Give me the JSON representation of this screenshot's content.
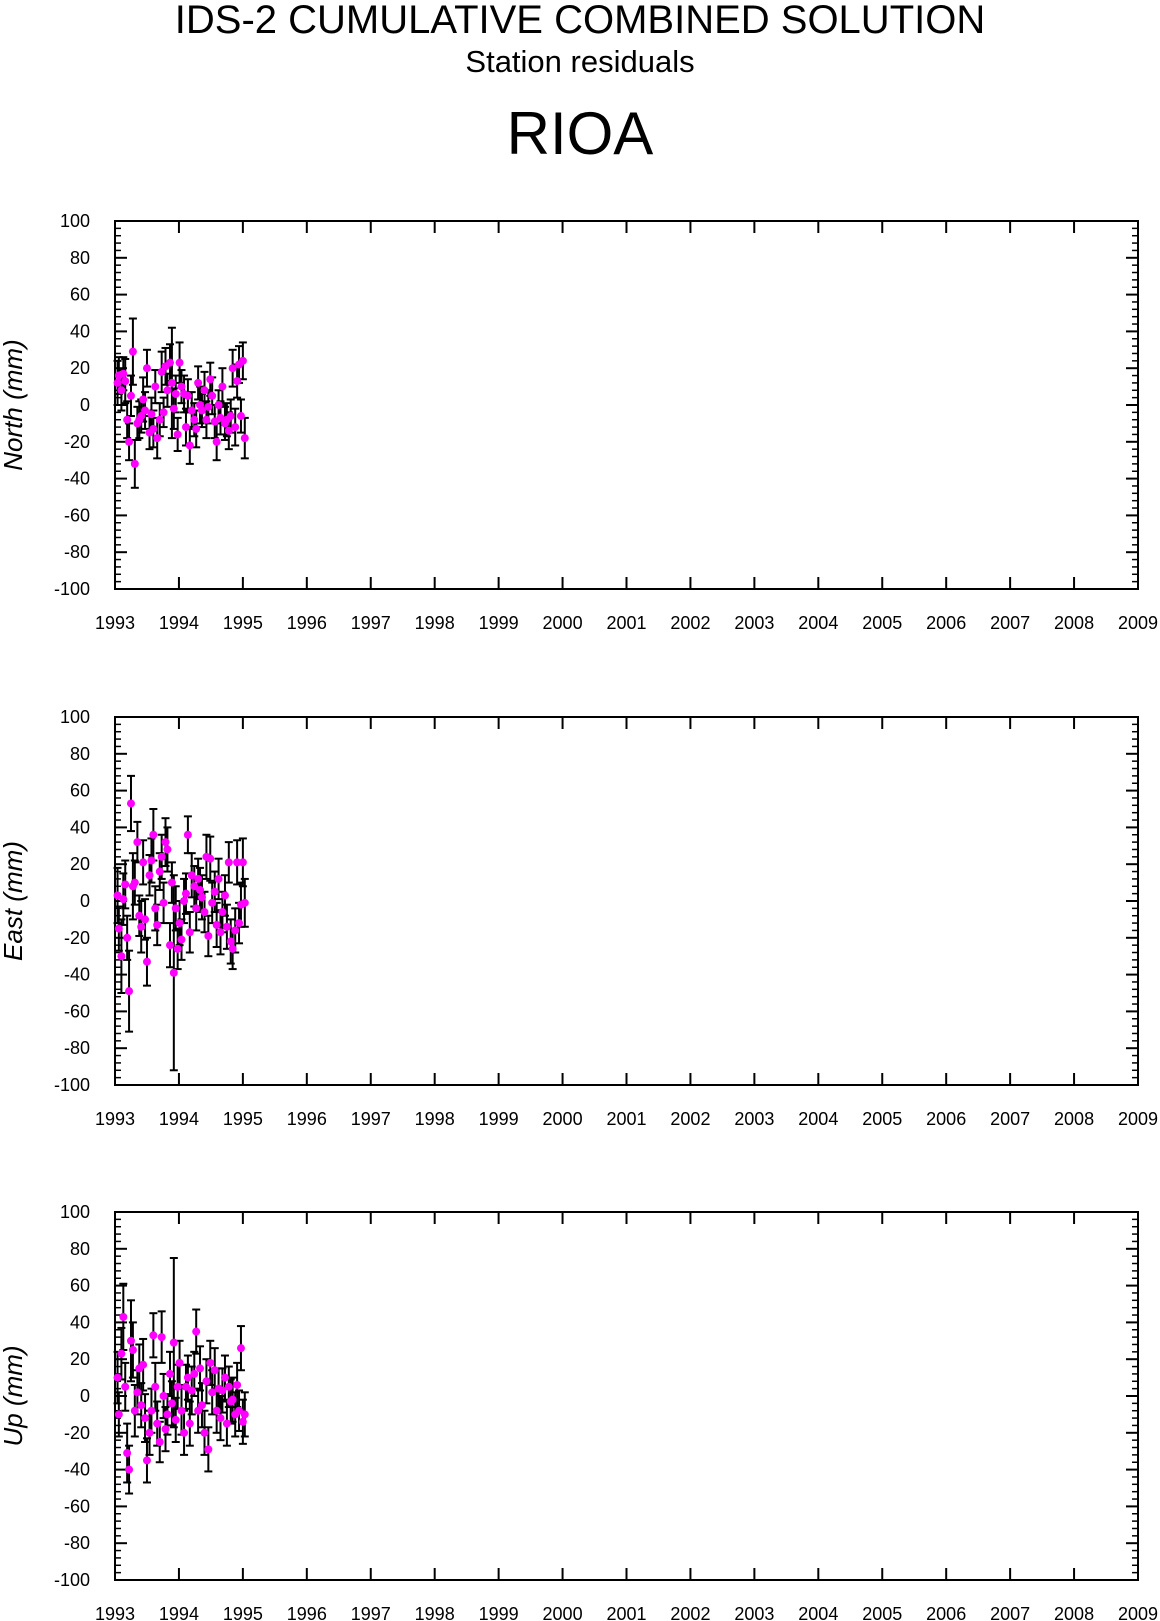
{
  "header": {
    "title": "IDS-2 CUMULATIVE COMBINED SOLUTION",
    "subtitle": "Station residuals",
    "station": "RIOA"
  },
  "colors": {
    "marker": "#ff00ff",
    "errorbar": "#000000",
    "axis": "#000000",
    "background": "#ffffff"
  },
  "chart_data": [
    {
      "type": "scatter",
      "panel": "north",
      "ylabel": "North (mm)",
      "xlim": [
        1993,
        2009
      ],
      "ylim": [
        -100,
        100
      ],
      "xticks": [
        "1993",
        "1994",
        "1995",
        "1996",
        "1997",
        "1998",
        "1999",
        "2000",
        "2001",
        "2002",
        "2003",
        "2004",
        "2005",
        "2006",
        "2007",
        "2008",
        "2009"
      ],
      "yticks": [
        "100",
        "80",
        "60",
        "40",
        "20",
        "0",
        "-20",
        "-40",
        "-60",
        "-80",
        "-100"
      ],
      "grid": false,
      "series": [
        {
          "x": [
            1993.04,
            1993.06,
            1993.1,
            1993.13,
            1993.16,
            1993.19,
            1993.22,
            1993.25,
            1993.28,
            1993.31,
            1993.35,
            1993.38,
            1993.41,
            1993.44,
            1993.47,
            1993.5,
            1993.54,
            1993.57,
            1993.6,
            1993.63,
            1993.66,
            1993.7,
            1993.73,
            1993.76,
            1993.79,
            1993.82,
            1993.86,
            1993.89,
            1993.92,
            1993.95,
            1993.98,
            1994.01,
            1994.04,
            1994.08,
            1994.11,
            1994.14,
            1994.17,
            1994.2,
            1994.24,
            1994.27,
            1994.3,
            1994.33,
            1994.36,
            1994.4,
            1994.43,
            1994.46,
            1994.49,
            1994.52,
            1994.56,
            1994.59,
            1994.62,
            1994.65,
            1994.68,
            1994.72,
            1994.75,
            1994.78,
            1994.81,
            1994.84,
            1994.88,
            1994.91,
            1994.94,
            1994.97,
            1995.0,
            1995.03
          ],
          "y": [
            12,
            16,
            8,
            17,
            13,
            -8,
            -20,
            5,
            29,
            -32,
            -10,
            -8,
            -6,
            3,
            -3,
            20,
            -15,
            -5,
            -13,
            10,
            -18,
            -8,
            18,
            -4,
            21,
            8,
            23,
            12,
            -2,
            6,
            -16,
            23,
            10,
            6,
            -12,
            5,
            -22,
            -3,
            -8,
            -13,
            12,
            0,
            -3,
            8,
            -8,
            -1,
            14,
            5,
            -9,
            -20,
            0,
            -7,
            10,
            -10,
            -8,
            -14,
            -6,
            20,
            -12,
            13,
            22,
            -6,
            24,
            -18
          ],
          "err": [
            12,
            10,
            11,
            9,
            12,
            10,
            10,
            11,
            18,
            13,
            9,
            10,
            9,
            12,
            10,
            10,
            9,
            9,
            10,
            9,
            11,
            9,
            11,
            8,
            10,
            9,
            10,
            30,
            11,
            10,
            9,
            11,
            9,
            10,
            10,
            9,
            10,
            10,
            9,
            10,
            9,
            10,
            9,
            10,
            10,
            9,
            9,
            10,
            9,
            10,
            8,
            9,
            10,
            9,
            9,
            10,
            9,
            10,
            10,
            9,
            10,
            9,
            10,
            11
          ]
        }
      ]
    },
    {
      "type": "scatter",
      "panel": "east",
      "ylabel": "East (mm)",
      "xlim": [
        1993,
        2009
      ],
      "ylim": [
        -100,
        100
      ],
      "xticks": [
        "1993",
        "1994",
        "1995",
        "1996",
        "1997",
        "1998",
        "1999",
        "2000",
        "2001",
        "2002",
        "2003",
        "2004",
        "2005",
        "2006",
        "2007",
        "2008",
        "2009"
      ],
      "yticks": [
        "100",
        "80",
        "60",
        "40",
        "20",
        "0",
        "-20",
        "-40",
        "-60",
        "-80",
        "-100"
      ],
      "grid": false,
      "series": [
        {
          "x": [
            1993.04,
            1993.06,
            1993.1,
            1993.13,
            1993.16,
            1993.19,
            1993.22,
            1993.25,
            1993.28,
            1993.31,
            1993.35,
            1993.38,
            1993.41,
            1993.44,
            1993.47,
            1993.5,
            1993.54,
            1993.57,
            1993.6,
            1993.63,
            1993.66,
            1993.7,
            1993.73,
            1993.76,
            1993.79,
            1993.82,
            1993.86,
            1993.89,
            1993.92,
            1993.95,
            1993.98,
            1994.01,
            1994.04,
            1994.08,
            1994.11,
            1994.14,
            1994.17,
            1994.2,
            1994.24,
            1994.27,
            1994.3,
            1994.33,
            1994.36,
            1994.4,
            1994.43,
            1994.46,
            1994.49,
            1994.52,
            1994.56,
            1994.59,
            1994.62,
            1994.65,
            1994.68,
            1994.72,
            1994.75,
            1994.78,
            1994.81,
            1994.84,
            1994.88,
            1994.91,
            1994.94,
            1994.97,
            1995.0,
            1995.03
          ],
          "y": [
            3,
            -15,
            -30,
            1,
            9,
            -20,
            -49,
            53,
            8,
            10,
            32,
            -8,
            -14,
            21,
            -10,
            -33,
            14,
            22,
            36,
            -4,
            -13,
            16,
            24,
            -1,
            32,
            28,
            -24,
            10,
            -39,
            -4,
            -26,
            -12,
            -21,
            0,
            4,
            36,
            -17,
            14,
            8,
            -4,
            12,
            6,
            2,
            -6,
            24,
            -19,
            23,
            -1,
            5,
            -13,
            12,
            -17,
            -6,
            3,
            -14,
            21,
            -22,
            -26,
            -16,
            21,
            -12,
            -2,
            21,
            -1
          ],
          "err": [
            15,
            12,
            20,
            14,
            13,
            12,
            22,
            15,
            18,
            12,
            11,
            11,
            14,
            12,
            11,
            13,
            11,
            12,
            14,
            12,
            11,
            10,
            12,
            11,
            13,
            12,
            12,
            11,
            53,
            12,
            11,
            12,
            11,
            12,
            11,
            10,
            11,
            12,
            11,
            12,
            11,
            12,
            12,
            11,
            12,
            11,
            12,
            11,
            11,
            12,
            11,
            12,
            11,
            11,
            12,
            11,
            12,
            11,
            12,
            12,
            11,
            12,
            13,
            13
          ]
        }
      ]
    },
    {
      "type": "scatter",
      "panel": "up",
      "ylabel": "Up (mm)",
      "xlim": [
        1993,
        2009
      ],
      "ylim": [
        -100,
        100
      ],
      "xticks": [
        "1993",
        "1994",
        "1995",
        "1996",
        "1997",
        "1998",
        "1999",
        "2000",
        "2001",
        "2002",
        "2003",
        "2004",
        "2005",
        "2006",
        "2007",
        "2008",
        "2009"
      ],
      "yticks": [
        "100",
        "80",
        "60",
        "40",
        "20",
        "0",
        "-20",
        "-40",
        "-60",
        "-80",
        "-100"
      ],
      "grid": false,
      "series": [
        {
          "x": [
            1993.04,
            1993.06,
            1993.1,
            1993.13,
            1993.16,
            1993.19,
            1993.22,
            1993.25,
            1993.28,
            1993.31,
            1993.35,
            1993.38,
            1993.41,
            1993.44,
            1993.47,
            1993.5,
            1993.54,
            1993.57,
            1993.6,
            1993.63,
            1993.66,
            1993.7,
            1993.73,
            1993.76,
            1993.79,
            1993.82,
            1993.86,
            1993.89,
            1993.92,
            1993.95,
            1993.98,
            1994.01,
            1994.04,
            1994.08,
            1994.11,
            1994.14,
            1994.17,
            1994.2,
            1994.24,
            1994.27,
            1994.3,
            1994.33,
            1994.36,
            1994.4,
            1994.43,
            1994.46,
            1994.49,
            1994.52,
            1994.56,
            1994.59,
            1994.62,
            1994.65,
            1994.68,
            1994.72,
            1994.75,
            1994.78,
            1994.81,
            1994.84,
            1994.88,
            1994.91,
            1994.94,
            1994.97,
            1995.0,
            1995.03
          ],
          "y": [
            10,
            -10,
            23,
            43,
            5,
            -31,
            -40,
            30,
            25,
            -8,
            2,
            15,
            -5,
            17,
            -12,
            -35,
            -20,
            -8,
            33,
            5,
            -15,
            -25,
            32,
            0,
            -18,
            -10,
            12,
            -4,
            29,
            -13,
            5,
            18,
            -8,
            -20,
            5,
            10,
            -15,
            3,
            12,
            35,
            -8,
            15,
            -5,
            -20,
            8,
            -29,
            18,
            2,
            14,
            -8,
            4,
            -12,
            3,
            10,
            -15,
            5,
            -3,
            -2,
            -10,
            6,
            -8,
            26,
            -14,
            -10
          ],
          "err": [
            14,
            12,
            14,
            18,
            13,
            16,
            13,
            22,
            15,
            14,
            12,
            13,
            12,
            14,
            13,
            12,
            12,
            12,
            12,
            13,
            12,
            11,
            14,
            12,
            12,
            11,
            12,
            12,
            46,
            12,
            12,
            12,
            13,
            12,
            12,
            12,
            12,
            13,
            12,
            12,
            12,
            12,
            12,
            12,
            12,
            12,
            12,
            12,
            12,
            12,
            11,
            12,
            12,
            12,
            12,
            11,
            12,
            12,
            12,
            12,
            11,
            12,
            12,
            12
          ]
        }
      ]
    }
  ]
}
